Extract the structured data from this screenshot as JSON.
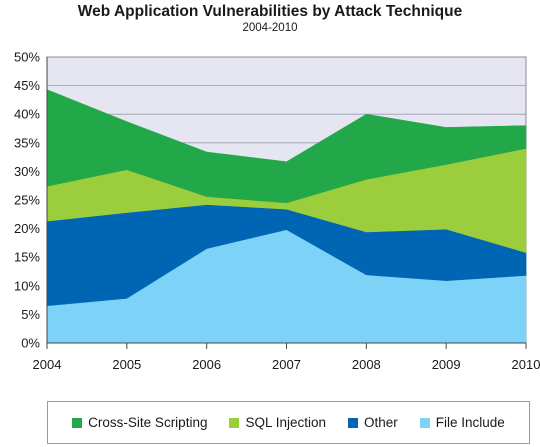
{
  "chart_data": {
    "type": "area",
    "title": "Web Application Vulnerabilities by Attack Technique",
    "subtitle": "2004-2010",
    "xlabel": "",
    "ylabel": "",
    "stacked": true,
    "x": [
      "2004",
      "2005",
      "2006",
      "2007",
      "2008",
      "2009",
      "2010"
    ],
    "ylim": [
      0,
      50
    ],
    "y_ticks": [
      "0%",
      "5%",
      "10%",
      "15%",
      "20%",
      "25%",
      "30%",
      "35%",
      "40%",
      "45%",
      "50%"
    ],
    "grid": true,
    "legend_position": "bottom",
    "series": [
      {
        "name": "File Include",
        "color": "#7dd3f7",
        "values": [
          6.5,
          7.8,
          16.5,
          19.8,
          11.9,
          10.9,
          11.8
        ]
      },
      {
        "name": "Other",
        "color": "#0066b3",
        "values": [
          14.8,
          15.0,
          7.7,
          3.6,
          7.5,
          9.0,
          4.0
        ]
      },
      {
        "name": "SQL Injection",
        "color": "#9ccd3c",
        "values": [
          6.1,
          7.5,
          1.4,
          1.1,
          9.2,
          11.3,
          18.2
        ]
      },
      {
        "name": "Cross-Site Scripting",
        "color": "#23a849",
        "values": [
          16.9,
          8.4,
          7.8,
          7.2,
          11.4,
          6.5,
          4.0
        ]
      }
    ],
    "legend_order": [
      "Cross-Site Scripting",
      "SQL Injection",
      "Other",
      "File Include"
    ]
  }
}
